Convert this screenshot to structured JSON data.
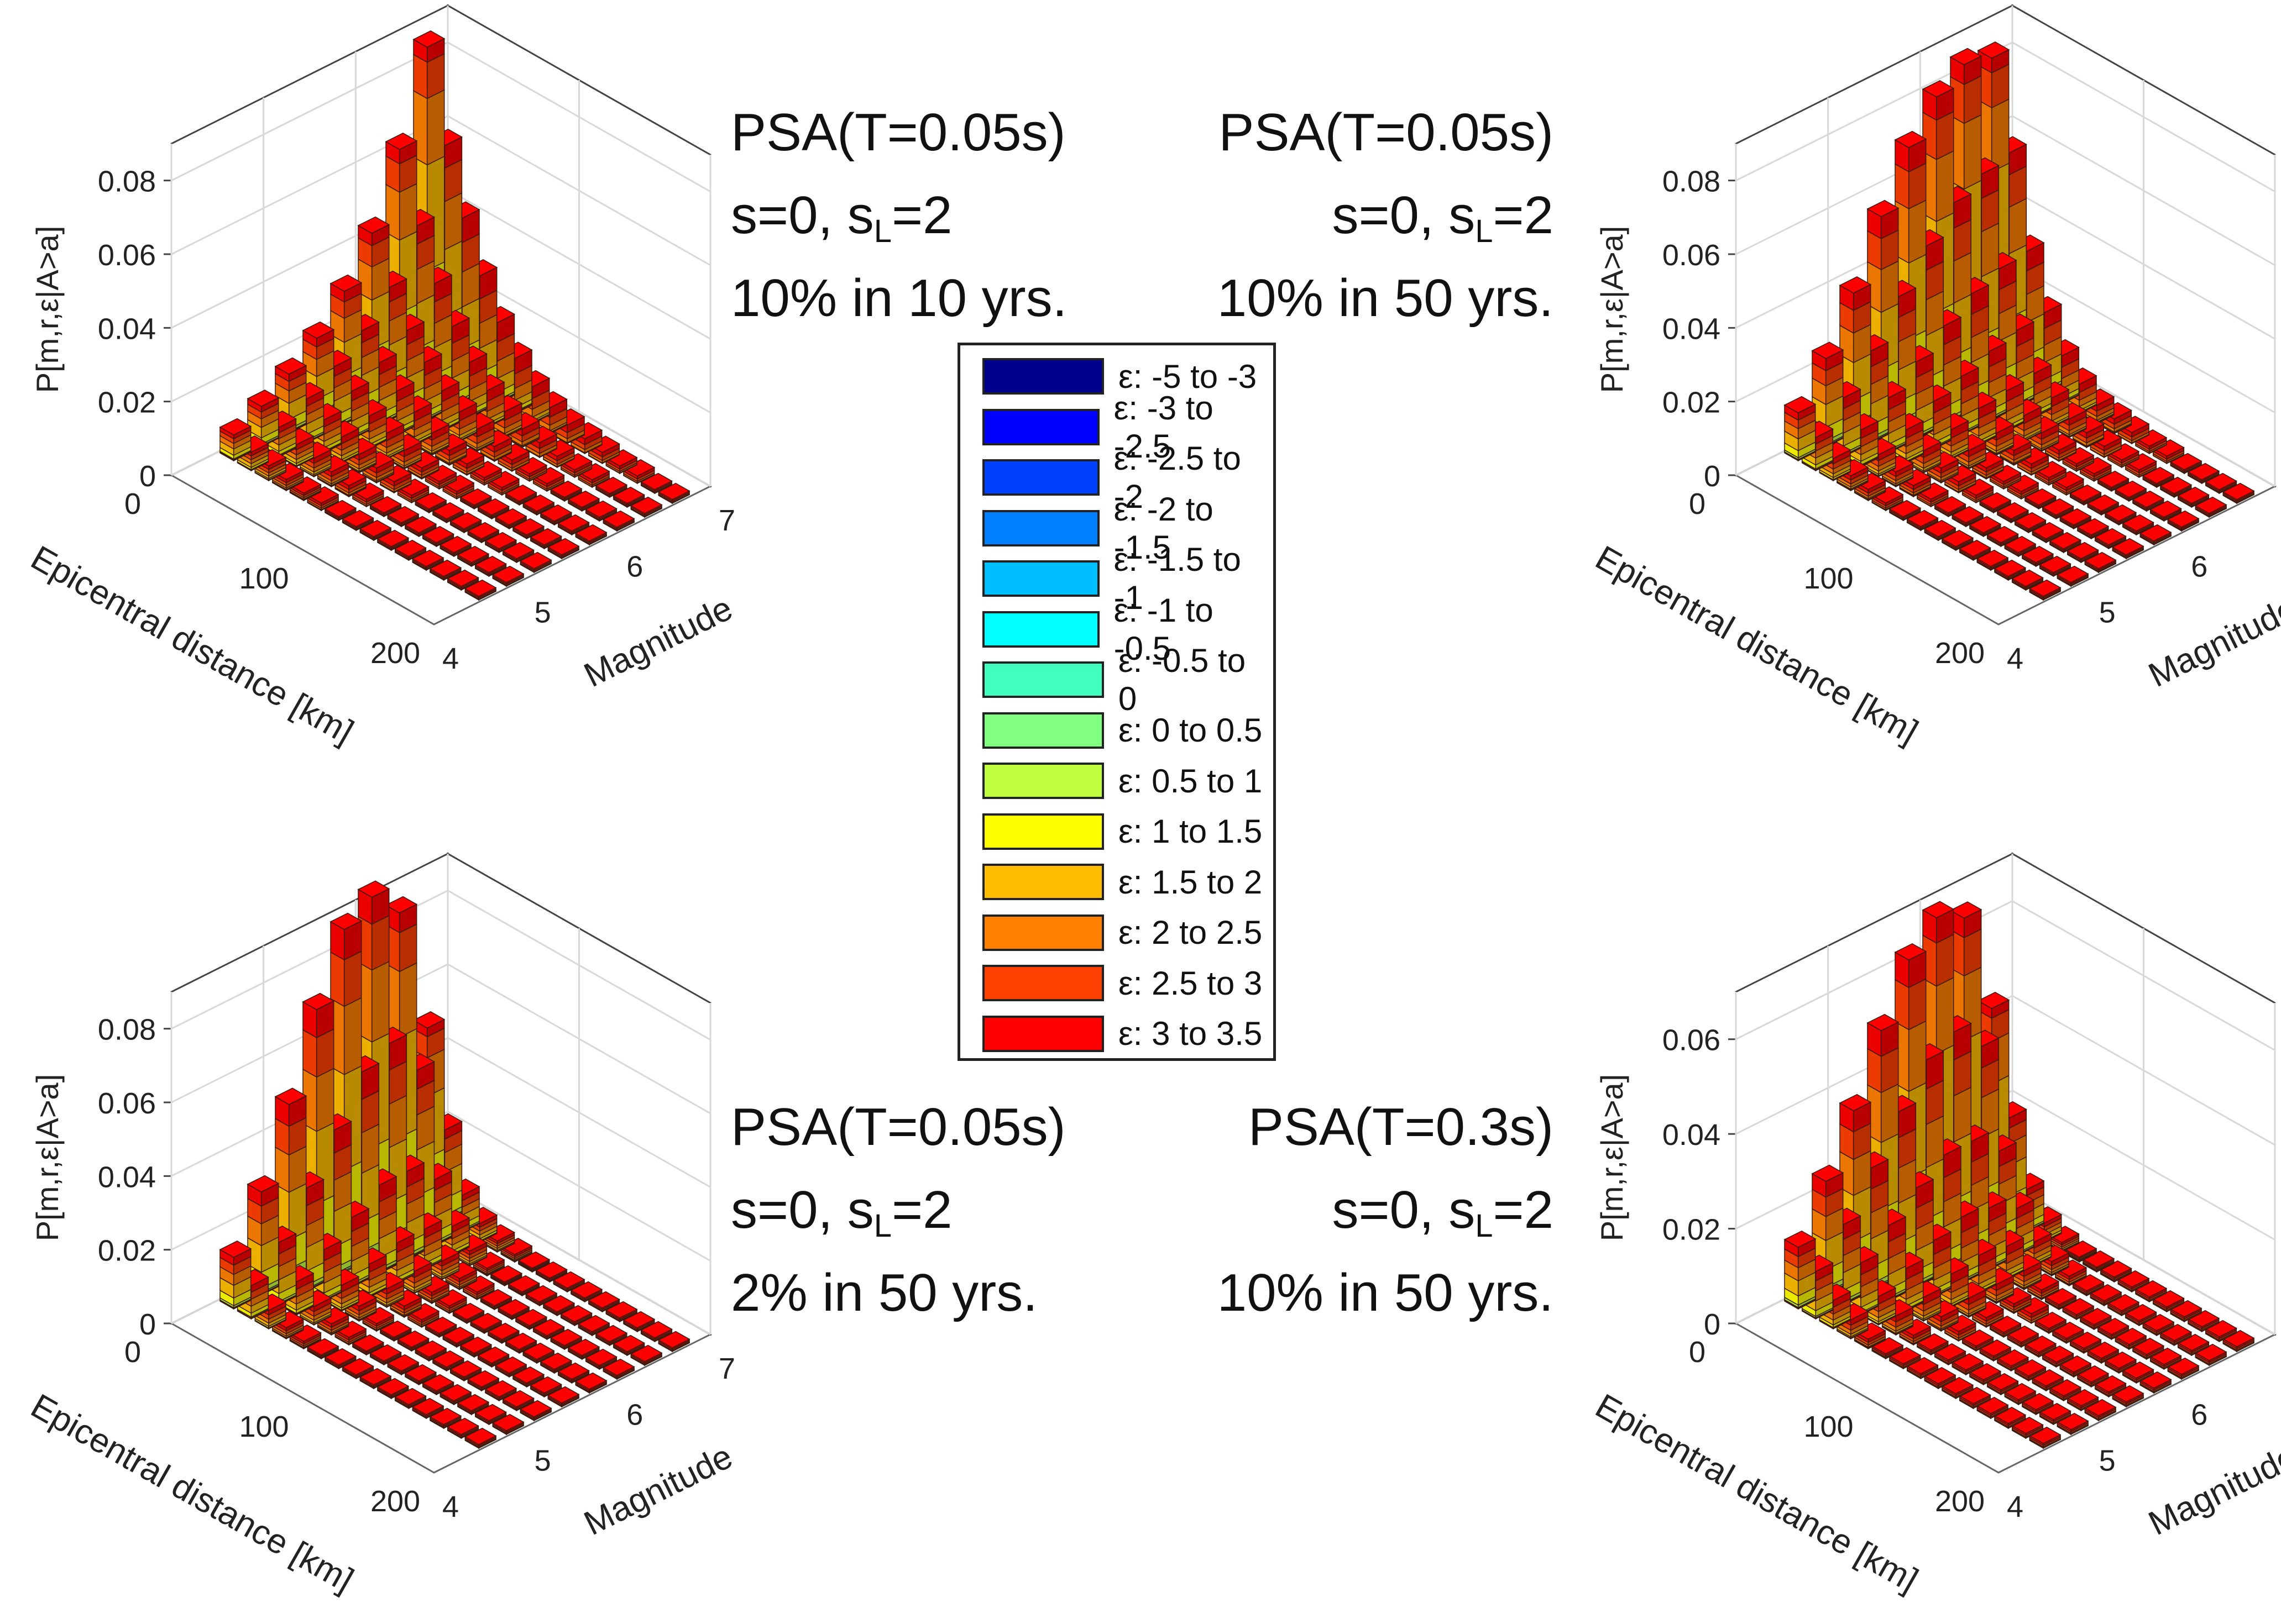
{
  "eps_bins": [
    {
      "label": "ε: -5 to -3",
      "color": "#00008f"
    },
    {
      "label": "ε: -3 to -2.5",
      "color": "#0000ff"
    },
    {
      "label": "ε: -2.5 to -2",
      "color": "#0040ff"
    },
    {
      "label": "ε: -2 to -1.5",
      "color": "#0080ff"
    },
    {
      "label": "ε: -1.5 to -1",
      "color": "#00bfff"
    },
    {
      "label": "ε: -1 to -0.5",
      "color": "#00ffff"
    },
    {
      "label": "ε: -0.5 to 0",
      "color": "#40ffbf"
    },
    {
      "label": "ε: 0 to 0.5",
      "color": "#80ff80"
    },
    {
      "label": "ε: 0.5 to 1",
      "color": "#bfff40"
    },
    {
      "label": "ε: 1 to 1.5",
      "color": "#ffff00"
    },
    {
      "label": "ε: 1.5 to 2",
      "color": "#ffbf00"
    },
    {
      "label": "ε: 2 to 2.5",
      "color": "#ff8000"
    },
    {
      "label": "ε: 2.5 to 3",
      "color": "#ff4000"
    },
    {
      "label": "ε: 3 to 3.5",
      "color": "#ff0000"
    }
  ],
  "chart_data": [
    {
      "type": "bar3d",
      "ylabel": "P[m,r,ε|A>a]",
      "xlabel": "Epicentral distance [km]",
      "zlabel": "Magnitude",
      "ylim": [
        0,
        0.09
      ],
      "yticks": [
        "0",
        "0.02",
        "0.04",
        "0.06",
        "0.08"
      ],
      "distance_ticks": [
        "0",
        "100",
        "200"
      ],
      "magnitude_ticks": [
        "4",
        "5",
        "6",
        "7"
      ],
      "annotation": {
        "line1": "PSA(T=0.05s)",
        "line2a": "s=0, s",
        "line2sub": "L",
        "line2b": "=2",
        "line3": "10% in 10 yrs."
      },
      "magnitudes": [
        6.7,
        6.4,
        6.1,
        5.8,
        5.5,
        5.2,
        4.9,
        4.6
      ],
      "heights": [
        [
          0.086,
          0.062,
          0.045,
          0.032,
          0.022,
          0.015,
          0.01,
          0.007,
          0.005,
          0.004,
          0.003,
          0.002,
          0.002,
          0.001,
          0.001
        ],
        [
          0.062,
          0.044,
          0.031,
          0.022,
          0.015,
          0.01,
          0.007,
          0.005,
          0.004,
          0.003,
          0.002,
          0.002,
          0.001,
          0.001,
          0.001
        ],
        [
          0.043,
          0.031,
          0.022,
          0.016,
          0.011,
          0.008,
          0.006,
          0.004,
          0.003,
          0.002,
          0.002,
          0.001,
          0.001,
          0.001,
          0.001
        ],
        [
          0.031,
          0.023,
          0.017,
          0.012,
          0.009,
          0.006,
          0.004,
          0.003,
          0.002,
          0.002,
          0.001,
          0.001,
          0.001,
          0.001,
          0.001
        ],
        [
          0.022,
          0.017,
          0.013,
          0.009,
          0.007,
          0.005,
          0.003,
          0.002,
          0.002,
          0.001,
          0.001,
          0.001,
          0.001,
          0.001,
          0.001
        ],
        [
          0.016,
          0.012,
          0.009,
          0.007,
          0.005,
          0.004,
          0.003,
          0.002,
          0.001,
          0.001,
          0.001,
          0.001,
          0.001,
          0.001,
          0.001
        ],
        [
          0.011,
          0.008,
          0.006,
          0.005,
          0.004,
          0.003,
          0.002,
          0.001,
          0.001,
          0.001,
          0.001,
          0.001,
          0.001,
          0.001,
          0.001
        ],
        [
          0.007,
          0.005,
          0.004,
          0.003,
          0.002,
          0.002,
          0.001,
          0.001,
          0.001,
          0.001,
          0.001,
          0.001,
          0.001,
          0.001,
          0.001
        ]
      ]
    },
    {
      "type": "bar3d",
      "ylabel": "P[m,r,ε|A>a]",
      "xlabel": "Epicentral distance [km]",
      "zlabel": "Magnitude",
      "ylim": [
        0,
        0.09
      ],
      "yticks": [
        "0",
        "0.02",
        "0.04",
        "0.06",
        "0.08"
      ],
      "distance_ticks": [
        "0",
        "100",
        "200"
      ],
      "magnitude_ticks": [
        "4",
        "5",
        "6",
        "7"
      ],
      "annotation": {
        "line1": "PSA(T=0.05s)",
        "line2a": "s=0, s",
        "line2sub": "L",
        "line2b": "=2",
        "line3": "10% in 50 yrs."
      },
      "magnitudes": [
        6.7,
        6.4,
        6.1,
        5.8,
        5.5,
        5.2,
        4.9,
        4.6
      ],
      "heights": [
        [
          0.083,
          0.06,
          0.036,
          0.022,
          0.013,
          0.008,
          0.005,
          0.004,
          0.003,
          0.002,
          0.002,
          0.001,
          0.001,
          0.001,
          0.001
        ],
        [
          0.085,
          0.058,
          0.035,
          0.021,
          0.012,
          0.008,
          0.005,
          0.004,
          0.003,
          0.002,
          0.002,
          0.001,
          0.001,
          0.001,
          0.001
        ],
        [
          0.08,
          0.054,
          0.032,
          0.019,
          0.011,
          0.007,
          0.005,
          0.003,
          0.002,
          0.002,
          0.001,
          0.001,
          0.001,
          0.001,
          0.001
        ],
        [
          0.07,
          0.046,
          0.027,
          0.016,
          0.01,
          0.006,
          0.004,
          0.003,
          0.002,
          0.002,
          0.001,
          0.001,
          0.001,
          0.001,
          0.001
        ],
        [
          0.055,
          0.036,
          0.021,
          0.013,
          0.008,
          0.005,
          0.003,
          0.002,
          0.002,
          0.001,
          0.001,
          0.001,
          0.001,
          0.001,
          0.001
        ],
        [
          0.038,
          0.025,
          0.015,
          0.009,
          0.006,
          0.004,
          0.003,
          0.002,
          0.001,
          0.001,
          0.001,
          0.001,
          0.001,
          0.001,
          0.001
        ],
        [
          0.024,
          0.016,
          0.01,
          0.006,
          0.004,
          0.003,
          0.002,
          0.001,
          0.001,
          0.001,
          0.001,
          0.001,
          0.001,
          0.001,
          0.001
        ],
        [
          0.013,
          0.009,
          0.006,
          0.004,
          0.003,
          0.002,
          0.001,
          0.001,
          0.001,
          0.001,
          0.001,
          0.001,
          0.001,
          0.001,
          0.001
        ]
      ]
    },
    {
      "type": "bar3d",
      "ylabel": "P[m,r,ε|A>a]",
      "xlabel": "Epicentral distance [km]",
      "zlabel": "Magnitude",
      "ylim": [
        0,
        0.09
      ],
      "yticks": [
        "0",
        "0.02",
        "0.04",
        "0.06",
        "0.08"
      ],
      "distance_ticks": [
        "0",
        "100",
        "200"
      ],
      "magnitude_ticks": [
        "4",
        "5",
        "6",
        "7"
      ],
      "annotation": {
        "line1": "PSA(T=0.05s)",
        "line2a": "s=0, s",
        "line2sub": "L",
        "line2b": "=2",
        "line3": "2% in 50 yrs."
      },
      "magnitudes": [
        6.7,
        6.4,
        6.1,
        5.8,
        5.5,
        5.2,
        4.9,
        4.6
      ],
      "heights": [
        [
          0.05,
          0.025,
          0.01,
          0.005,
          0.003,
          0.002,
          0.001,
          0.001,
          0.001,
          0.001,
          0.001,
          0.001,
          0.001,
          0.001,
          0.001
        ],
        [
          0.085,
          0.045,
          0.018,
          0.008,
          0.004,
          0.002,
          0.001,
          0.001,
          0.001,
          0.001,
          0.001,
          0.001,
          0.001,
          0.001,
          0.001
        ],
        [
          0.093,
          0.056,
          0.024,
          0.011,
          0.005,
          0.003,
          0.002,
          0.001,
          0.001,
          0.001,
          0.001,
          0.001,
          0.001,
          0.001,
          0.001
        ],
        [
          0.088,
          0.052,
          0.024,
          0.011,
          0.006,
          0.003,
          0.002,
          0.001,
          0.001,
          0.001,
          0.001,
          0.001,
          0.001,
          0.001,
          0.001
        ],
        [
          0.07,
          0.04,
          0.019,
          0.009,
          0.005,
          0.003,
          0.002,
          0.001,
          0.001,
          0.001,
          0.001,
          0.001,
          0.001,
          0.001,
          0.001
        ],
        [
          0.048,
          0.028,
          0.014,
          0.007,
          0.004,
          0.002,
          0.001,
          0.001,
          0.001,
          0.001,
          0.001,
          0.001,
          0.001,
          0.001,
          0.001
        ],
        [
          0.028,
          0.017,
          0.009,
          0.005,
          0.003,
          0.002,
          0.001,
          0.001,
          0.001,
          0.001,
          0.001,
          0.001,
          0.001,
          0.001,
          0.001
        ],
        [
          0.014,
          0.009,
          0.005,
          0.003,
          0.002,
          0.001,
          0.001,
          0.001,
          0.001,
          0.001,
          0.001,
          0.001,
          0.001,
          0.001,
          0.001
        ]
      ]
    },
    {
      "type": "bar3d",
      "ylabel": "P[m,r,ε|A>a]",
      "xlabel": "Epicentral distance [km]",
      "zlabel": "Magnitude",
      "ylim": [
        0,
        0.07
      ],
      "yticks": [
        "0",
        "0.02",
        "0.04",
        "0.06"
      ],
      "distance_ticks": [
        "0",
        "100",
        "200"
      ],
      "magnitude_ticks": [
        "4",
        "5",
        "6",
        "7"
      ],
      "annotation": {
        "line1": "PSA(T=0.3s)",
        "line2a": "s=0, s",
        "line2sub": "L",
        "line2b": "=2",
        "line3": "10% in 50 yrs."
      },
      "magnitudes": [
        6.7,
        6.4,
        6.1,
        5.8,
        5.5,
        5.2,
        4.9,
        4.6
      ],
      "heights": [
        [
          0.043,
          0.022,
          0.009,
          0.004,
          0.002,
          0.001,
          0.001,
          0.001,
          0.001,
          0.001,
          0.001,
          0.001,
          0.001,
          0.001,
          0.001
        ],
        [
          0.065,
          0.04,
          0.02,
          0.01,
          0.005,
          0.003,
          0.002,
          0.001,
          0.001,
          0.001,
          0.001,
          0.001,
          0.001,
          0.001,
          0.001
        ],
        [
          0.068,
          0.046,
          0.025,
          0.013,
          0.007,
          0.004,
          0.002,
          0.001,
          0.001,
          0.001,
          0.001,
          0.001,
          0.001,
          0.001,
          0.001
        ],
        [
          0.062,
          0.043,
          0.025,
          0.014,
          0.008,
          0.004,
          0.002,
          0.002,
          0.001,
          0.001,
          0.001,
          0.001,
          0.001,
          0.001,
          0.001
        ],
        [
          0.05,
          0.035,
          0.021,
          0.012,
          0.007,
          0.004,
          0.002,
          0.001,
          0.001,
          0.001,
          0.001,
          0.001,
          0.001,
          0.001,
          0.001
        ],
        [
          0.036,
          0.026,
          0.016,
          0.009,
          0.005,
          0.003,
          0.002,
          0.001,
          0.001,
          0.001,
          0.001,
          0.001,
          0.001,
          0.001,
          0.001
        ],
        [
          0.024,
          0.017,
          0.011,
          0.006,
          0.004,
          0.002,
          0.001,
          0.001,
          0.001,
          0.001,
          0.001,
          0.001,
          0.001,
          0.001,
          0.001
        ],
        [
          0.013,
          0.01,
          0.006,
          0.004,
          0.002,
          0.001,
          0.001,
          0.001,
          0.001,
          0.001,
          0.001,
          0.001,
          0.001,
          0.001,
          0.001
        ]
      ]
    }
  ]
}
